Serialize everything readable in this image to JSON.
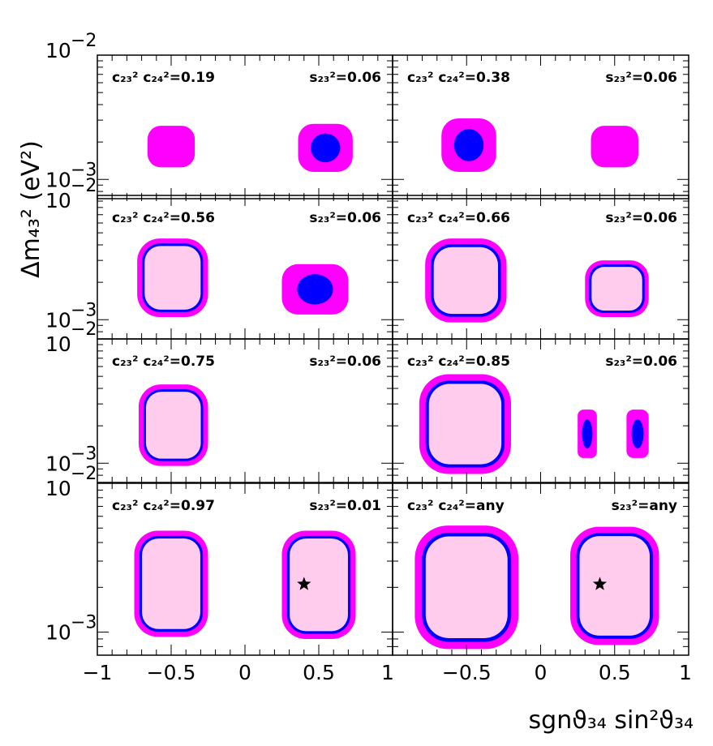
{
  "chart_data": {
    "type": "contour",
    "layout": "4x2 grid of panels sharing axes",
    "xlabel": "sgnϑ₃₄ sin²ϑ₃₄",
    "ylabel": "Δm₄₃² (eV²)",
    "xlim": [
      -1,
      1
    ],
    "ylim": [
      0.0007,
      0.01
    ],
    "y_scale": "log",
    "x_ticks": [
      "−1",
      "−0.5",
      "0",
      "0.5",
      "1"
    ],
    "x_ticks_right": [
      "−0.5",
      "0",
      "0.5",
      "1"
    ],
    "y_exp_top": "−2",
    "y_exp_mid": "−3",
    "y_ten": "10",
    "fill_colors": {
      "outer": "#ff00ff",
      "middle": "#0000ff",
      "inner": "#ffccee"
    },
    "panels": [
      {
        "label_left": "c₂₃² c₂₄²=0.19",
        "label_right": "s₂₃²=0.06",
        "star": false,
        "regions": [
          {
            "x": [
              -0.66,
              -0.34
            ],
            "y": [
              0.00125,
              0.0027
            ],
            "levels": 1
          },
          {
            "x": [
              0.36,
              0.73
            ],
            "y": [
              0.00115,
              0.0028
            ],
            "levels": 2
          }
        ]
      },
      {
        "label_left": "c₂₃² c₂₄²=0.38",
        "label_right": "s₂₃²=0.06",
        "star": false,
        "regions": [
          {
            "x": [
              -0.67,
              -0.3
            ],
            "y": [
              0.00115,
              0.0031
            ],
            "levels": 2
          },
          {
            "x": [
              0.34,
              0.66
            ],
            "y": [
              0.00125,
              0.0027
            ],
            "levels": 1
          }
        ]
      },
      {
        "label_left": "c₂₃² c₂₄²=0.56",
        "label_right": "s₂₃²=0.06",
        "star": false,
        "regions": [
          {
            "x": [
              -0.73,
              -0.25
            ],
            "y": [
              0.00105,
              0.0045
            ],
            "levels": 3
          },
          {
            "x": [
              0.25,
              0.7
            ],
            "y": [
              0.0011,
              0.0028
            ],
            "levels": 2
          }
        ]
      },
      {
        "label_left": "c₂₃² c₂₄²=0.66",
        "label_right": "s₂₃²=0.06",
        "star": false,
        "regions": [
          {
            "x": [
              -0.78,
              -0.23
            ],
            "y": [
              0.00095,
              0.0045
            ],
            "levels": 3
          },
          {
            "x": [
              0.3,
              0.73
            ],
            "y": [
              0.00105,
              0.003
            ],
            "levels": 3
          }
        ]
      },
      {
        "label_left": "c₂₃² c₂₄²=0.75",
        "label_right": "s₂₃²=0.06",
        "star": false,
        "regions": [
          {
            "x": [
              -0.72,
              -0.25
            ],
            "y": [
              0.00095,
              0.0043
            ],
            "levels": 3
          }
        ]
      },
      {
        "label_left": "c₂₃² c₂₄²=0.85",
        "label_right": "s₂₃²=0.06",
        "star": false,
        "regions": [
          {
            "x": [
              -0.82,
              -0.2
            ],
            "y": [
              0.00082,
              0.0052
            ],
            "levels": 3
          },
          {
            "x": [
              0.25,
              0.38
            ],
            "y": [
              0.0011,
              0.0027
            ],
            "levels": 2
          },
          {
            "x": [
              0.58,
              0.73
            ],
            "y": [
              0.0011,
              0.0027
            ],
            "levels": 2
          }
        ]
      },
      {
        "label_left": "c₂₃² c₂₄²=0.97",
        "label_right": "s₂₃²=0.01",
        "star": true,
        "star_point": [
          0.4,
          0.0021
        ],
        "regions": [
          {
            "x": [
              -0.75,
              -0.25
            ],
            "y": [
              0.00093,
              0.0048
            ],
            "levels": 3
          },
          {
            "x": [
              0.25,
              0.75
            ],
            "y": [
              0.0009,
              0.0048
            ],
            "levels": 3
          }
        ]
      },
      {
        "label_left": "c₂₃² c₂₄²=any",
        "label_right": "s₂₃²=any",
        "star": true,
        "star_point": [
          0.4,
          0.0021
        ],
        "regions": [
          {
            "x": [
              -0.85,
              -0.15
            ],
            "y": [
              0.00077,
              0.0052
            ],
            "levels": 3
          },
          {
            "x": [
              0.2,
              0.8
            ],
            "y": [
              0.00082,
              0.0051
            ],
            "levels": 3
          }
        ]
      }
    ]
  }
}
